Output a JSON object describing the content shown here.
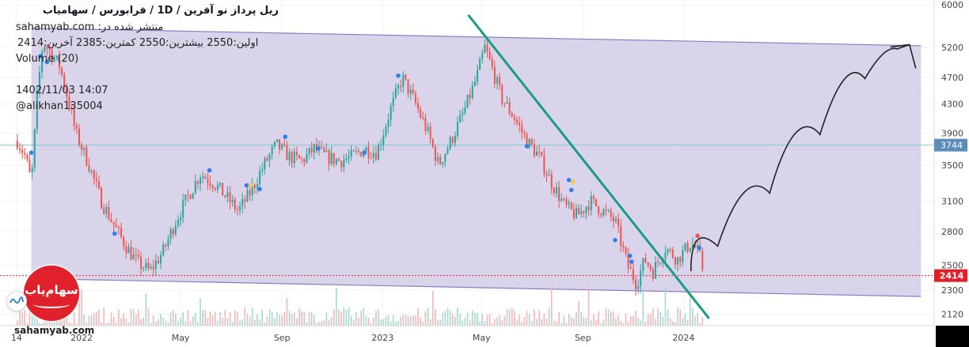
{
  "header": {
    "title": "ریل پرداز نو آفرین / 1D / فرابورس / سهامیاب",
    "published": "sahamyab.com :منتشر شده در",
    "ohlc": "اولین:2550 بیشترین:2550 کمترین:2385 آخرین:2414",
    "volume_label": "Volume (20)",
    "timestamp": "1402/11/03 14:07",
    "author": "@alikhan135004"
  },
  "watermark": "sahamyab.com",
  "logo_text": "سهام‌یاب",
  "colors": {
    "up": "#26a69a",
    "down": "#ef5350",
    "channel_fill": "#d3cce6",
    "channel_line": "#8e7cc3",
    "trendline": "#1a9b8a",
    "hline": "#7fcbd3",
    "last_price": "#e0212b",
    "price_badge_blue": "#5b8db8"
  },
  "chart_data": {
    "type": "candlestick",
    "y_scale": "log",
    "ylim": [
      2040,
      6100
    ],
    "y_ticks": [
      6000,
      5200,
      4700,
      4300,
      3900,
      3500,
      3100,
      2800,
      2500,
      2300,
      2120
    ],
    "x_ticks": [
      "14",
      "2022",
      "May",
      "Sep",
      "2023",
      "May",
      "Sep",
      "2024"
    ],
    "x_tick_dates": [
      "2021-10-14",
      "2022-01-01",
      "2022-05-01",
      "2022-09-01",
      "2023-01-01",
      "2023-05-01",
      "2023-09-01",
      "2024-01-01"
    ],
    "x_range": [
      "2021-09-24",
      "2024-10-31"
    ],
    "price_labels": {
      "hline": "3744",
      "last": "2414"
    },
    "horizontal_line": 3744,
    "last_price": 2414,
    "close_path": [
      [
        "2021-10-15",
        3800
      ],
      [
        "2021-10-25",
        3600
      ],
      [
        "2021-11-01",
        3300
      ],
      [
        "2021-11-08",
        4400
      ],
      [
        "2021-11-15",
        5300
      ],
      [
        "2021-11-25",
        5100
      ],
      [
        "2021-12-05",
        4900
      ],
      [
        "2021-12-15",
        4400
      ],
      [
        "2021-12-25",
        3900
      ],
      [
        "2022-01-10",
        3500
      ],
      [
        "2022-01-25",
        3100
      ],
      [
        "2022-02-10",
        2850
      ],
      [
        "2022-02-25",
        2650
      ],
      [
        "2022-03-10",
        2520
      ],
      [
        "2022-03-25",
        2450
      ],
      [
        "2022-04-10",
        2620
      ],
      [
        "2022-04-25",
        2900
      ],
      [
        "2022-05-10",
        3150
      ],
      [
        "2022-05-25",
        3400
      ],
      [
        "2022-06-10",
        3300
      ],
      [
        "2022-06-25",
        3150
      ],
      [
        "2022-07-10",
        3000
      ],
      [
        "2022-07-25",
        3200
      ],
      [
        "2022-08-10",
        3500
      ],
      [
        "2022-08-25",
        3750
      ],
      [
        "2022-09-10",
        3600
      ],
      [
        "2022-09-25",
        3550
      ],
      [
        "2022-10-10",
        3700
      ],
      [
        "2022-10-25",
        3600
      ],
      [
        "2022-11-10",
        3550
      ],
      [
        "2022-11-25",
        3600
      ],
      [
        "2022-12-10",
        3700
      ],
      [
        "2022-12-25",
        3650
      ],
      [
        "2023-01-10",
        4200
      ],
      [
        "2023-01-25",
        4700
      ],
      [
        "2023-02-10",
        4300
      ],
      [
        "2023-02-25",
        3900
      ],
      [
        "2023-03-10",
        3500
      ],
      [
        "2023-03-25",
        3800
      ],
      [
        "2023-04-10",
        4200
      ],
      [
        "2023-04-25",
        4700
      ],
      [
        "2023-05-05",
        5200
      ],
      [
        "2023-05-15",
        4800
      ],
      [
        "2023-05-25",
        4400
      ],
      [
        "2023-06-10",
        4100
      ],
      [
        "2023-06-25",
        3800
      ],
      [
        "2023-07-10",
        3600
      ],
      [
        "2023-07-25",
        3300
      ],
      [
        "2023-08-10",
        3050
      ],
      [
        "2023-08-25",
        2950
      ],
      [
        "2023-09-10",
        3100
      ],
      [
        "2023-09-25",
        3000
      ],
      [
        "2023-10-10",
        2900
      ],
      [
        "2023-10-25",
        2500
      ],
      [
        "2023-11-05",
        2350
      ],
      [
        "2023-11-15",
        2550
      ],
      [
        "2023-11-25",
        2450
      ],
      [
        "2023-12-10",
        2650
      ],
      [
        "2023-12-25",
        2550
      ],
      [
        "2024-01-10",
        2700
      ],
      [
        "2024-01-20",
        2600
      ],
      [
        "2024-01-26",
        2414
      ]
    ],
    "channel": {
      "upper": [
        [
          "2021-11-01",
          5550
        ],
        [
          "2024-10-15",
          5230
        ]
      ],
      "lower": [
        [
          "2021-11-01",
          2390
        ],
        [
          "2024-10-15",
          2250
        ]
      ]
    },
    "trendline": [
      [
        "2023-04-15",
        5800
      ],
      [
        "2024-02-01",
        2090
      ]
    ],
    "projection_arrow": [
      [
        "2024-01-10",
        2450
      ],
      [
        "2024-03-15",
        2900
      ],
      [
        "2024-05-15",
        3500
      ],
      [
        "2024-07-15",
        4300
      ],
      [
        "2024-09-01",
        5100
      ],
      [
        "2024-10-01",
        5250
      ]
    ],
    "volume": true,
    "markers_blue": [
      [
        "2021-11-12",
        5050
      ],
      [
        "2021-11-20",
        4950
      ],
      [
        "2021-11-01",
        3650
      ],
      [
        "2022-02-10",
        2780
      ],
      [
        "2022-06-05",
        3440
      ],
      [
        "2022-07-20",
        3270
      ],
      [
        "2022-08-05",
        3230
      ],
      [
        "2022-09-05",
        3850
      ],
      [
        "2022-10-15",
        3700
      ],
      [
        "2022-12-10",
        3650
      ],
      [
        "2023-01-20",
        4730
      ],
      [
        "2023-06-25",
        3730
      ],
      [
        "2023-08-15",
        3330
      ],
      [
        "2023-08-18",
        3220
      ],
      [
        "2023-10-10",
        2720
      ],
      [
        "2023-10-28",
        2580
      ],
      [
        "2023-10-30",
        2530
      ],
      [
        "2024-01-20",
        2650
      ]
    ],
    "markers_yellow": [
      [
        "2022-07-25",
        3270
      ],
      [
        "2023-08-20",
        3310
      ]
    ],
    "markers_red": [
      [
        "2024-01-18",
        2760
      ]
    ]
  }
}
